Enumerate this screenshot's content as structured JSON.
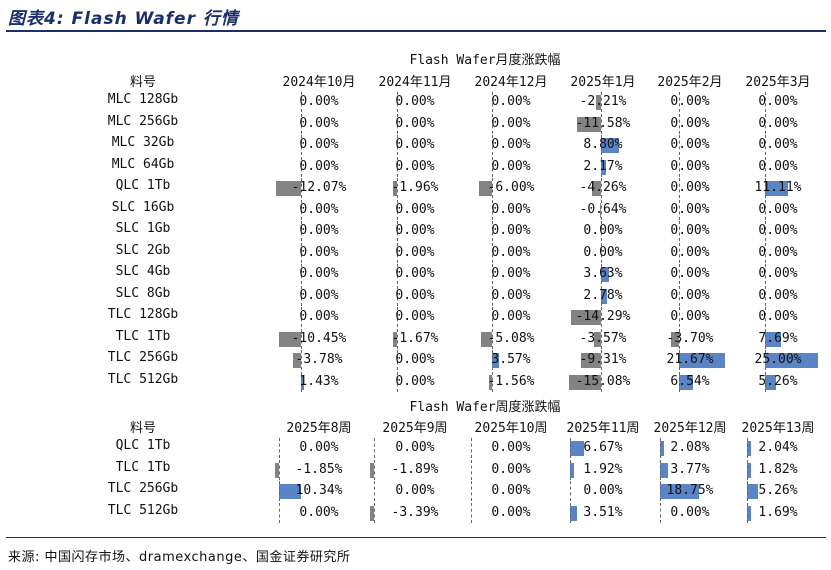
{
  "figure_title": "图表4: Flash Wafer 行情",
  "source_note": "来源: 中国闪存市场、dramexchange、国金证券研究所",
  "colors": {
    "positive_bar": "#5b84c6",
    "negative_bar": "#838383",
    "title": "#1c2f6b"
  },
  "chart_data": [
    {
      "type": "table",
      "title": "Flash Wafer月度涨跌幅",
      "row_header": "料号",
      "columns": [
        "2024年10月",
        "2024年11月",
        "2024年12月",
        "2025年1月",
        "2025年2月",
        "2025年3月"
      ],
      "rows": [
        {
          "label": "MLC 128Gb",
          "values": [
            0,
            0,
            0,
            -2.21,
            0,
            0
          ],
          "text": [
            "0.00%",
            "0.00%",
            "0.00%",
            "-2.21%",
            "0.00%",
            "0.00%"
          ]
        },
        {
          "label": "MLC 256Gb",
          "values": [
            0,
            0,
            0,
            -11.58,
            0,
            0
          ],
          "text": [
            "0.00%",
            "0.00%",
            "0.00%",
            "-11.58%",
            "0.00%",
            "0.00%"
          ]
        },
        {
          "label": "MLC 32Gb",
          "values": [
            0,
            0,
            0,
            8.8,
            0,
            0
          ],
          "text": [
            "0.00%",
            "0.00%",
            "0.00%",
            "8.80%",
            "0.00%",
            "0.00%"
          ]
        },
        {
          "label": "MLC 64Gb",
          "values": [
            0,
            0,
            0,
            2.17,
            0,
            0
          ],
          "text": [
            "0.00%",
            "0.00%",
            "0.00%",
            "2.17%",
            "0.00%",
            "0.00%"
          ]
        },
        {
          "label": "QLC 1Tb",
          "values": [
            -12.07,
            -1.96,
            -6,
            -4.26,
            0,
            11.11
          ],
          "text": [
            "-12.07%",
            "-1.96%",
            "-6.00%",
            "-4.26%",
            "0.00%",
            "11.11%"
          ]
        },
        {
          "label": "SLC 16Gb",
          "values": [
            0,
            0,
            0,
            -0.64,
            0,
            0
          ],
          "text": [
            "0.00%",
            "0.00%",
            "0.00%",
            "-0.64%",
            "0.00%",
            "0.00%"
          ]
        },
        {
          "label": "SLC 1Gb",
          "values": [
            0,
            0,
            0,
            0,
            0,
            0
          ],
          "text": [
            "0.00%",
            "0.00%",
            "0.00%",
            "0.00%",
            "0.00%",
            "0.00%"
          ]
        },
        {
          "label": "SLC 2Gb",
          "values": [
            0,
            0,
            0,
            0,
            0,
            0
          ],
          "text": [
            "0.00%",
            "0.00%",
            "0.00%",
            "0.00%",
            "0.00%",
            "0.00%"
          ]
        },
        {
          "label": "SLC 4Gb",
          "values": [
            0,
            0,
            0,
            3.63,
            0,
            0
          ],
          "text": [
            "0.00%",
            "0.00%",
            "0.00%",
            "3.63%",
            "0.00%",
            "0.00%"
          ]
        },
        {
          "label": "SLC 8Gb",
          "values": [
            0,
            0,
            0,
            2.78,
            0,
            0
          ],
          "text": [
            "0.00%",
            "0.00%",
            "0.00%",
            "2.78%",
            "0.00%",
            "0.00%"
          ]
        },
        {
          "label": "TLC 128Gb",
          "values": [
            0,
            0,
            0,
            -14.29,
            0,
            0
          ],
          "text": [
            "0.00%",
            "0.00%",
            "0.00%",
            "-14.29%",
            "0.00%",
            "0.00%"
          ]
        },
        {
          "label": "TLC 1Tb",
          "values": [
            -10.45,
            -1.67,
            -5.08,
            -3.57,
            -3.7,
            7.69
          ],
          "text": [
            "-10.45%",
            "-1.67%",
            "-5.08%",
            "-3.57%",
            "-3.70%",
            "7.69%"
          ]
        },
        {
          "label": "TLC 256Gb",
          "values": [
            -3.78,
            0,
            3.57,
            -9.31,
            21.67,
            25
          ],
          "text": [
            "-3.78%",
            "0.00%",
            "3.57%",
            "-9.31%",
            "21.67%",
            "25.00%"
          ]
        },
        {
          "label": "TLC 512Gb",
          "values": [
            1.43,
            0,
            -1.56,
            -15.08,
            6.54,
            5.26
          ],
          "text": [
            "1.43%",
            "0.00%",
            "-1.56%",
            "-15.08%",
            "6.54%",
            "5.26%"
          ]
        }
      ]
    },
    {
      "type": "table",
      "title": "Flash Wafer周度涨跌幅",
      "row_header": "料号",
      "columns": [
        "2025年8周",
        "2025年9周",
        "2025年10周",
        "2025年11周",
        "2025年12周",
        "2025年13周"
      ],
      "rows": [
        {
          "label": "QLC 1Tb",
          "values": [
            0,
            0,
            0,
            6.67,
            2.08,
            2.04
          ],
          "text": [
            "0.00%",
            "0.00%",
            "0.00%",
            "6.67%",
            "2.08%",
            "2.04%"
          ]
        },
        {
          "label": "TLC 1Tb",
          "values": [
            -1.85,
            -1.89,
            0,
            1.92,
            3.77,
            1.82
          ],
          "text": [
            "-1.85%",
            "-1.89%",
            "0.00%",
            "1.92%",
            "3.77%",
            "1.82%"
          ]
        },
        {
          "label": "TLC 256Gb",
          "values": [
            10.34,
            0,
            0,
            0,
            18.75,
            5.26
          ],
          "text": [
            "10.34%",
            "0.00%",
            "0.00%",
            "0.00%",
            "18.75%",
            "5.26%"
          ]
        },
        {
          "label": "TLC 512Gb",
          "values": [
            0,
            -3.39,
            0,
            3.51,
            0,
            1.69
          ],
          "text": [
            "0.00%",
            "-3.39%",
            "0.00%",
            "3.51%",
            "0.00%",
            "1.69%"
          ]
        }
      ]
    }
  ]
}
